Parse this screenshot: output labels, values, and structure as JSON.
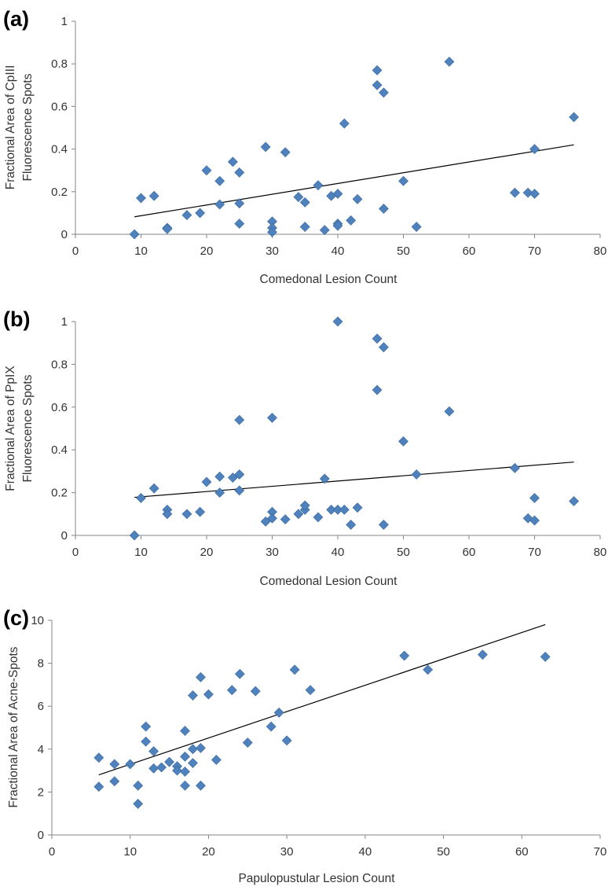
{
  "chart_data": [
    {
      "type": "scatter",
      "panel_label": "(a)",
      "ylabel_lines": [
        "Fractional Area of CpIII",
        "Fluorescence Spots"
      ],
      "xlabel": "Comedonal Lesion Count",
      "xlim": [
        0,
        80
      ],
      "ylim": [
        0,
        1
      ],
      "xticks": [
        0,
        10,
        20,
        30,
        40,
        50,
        60,
        70,
        80
      ],
      "yticks": [
        0,
        0.2,
        0.4,
        0.6,
        0.8,
        1
      ],
      "ytick_labels": [
        "0",
        "0.2",
        "0.4",
        "0.6",
        "0.8",
        "1"
      ],
      "marker_color": "#4F81BD",
      "points": [
        [
          9,
          0.0
        ],
        [
          10,
          0.17
        ],
        [
          12,
          0.18
        ],
        [
          14,
          0.03
        ],
        [
          14,
          0.025
        ],
        [
          17,
          0.09
        ],
        [
          19,
          0.1
        ],
        [
          20,
          0.3
        ],
        [
          22,
          0.25
        ],
        [
          22,
          0.14
        ],
        [
          24,
          0.34
        ],
        [
          25,
          0.29
        ],
        [
          25,
          0.145
        ],
        [
          25,
          0.05
        ],
        [
          29,
          0.41
        ],
        [
          30,
          0.06
        ],
        [
          30,
          0.03
        ],
        [
          30,
          0.01
        ],
        [
          32,
          0.385
        ],
        [
          34,
          0.175
        ],
        [
          35,
          0.15
        ],
        [
          35,
          0.035
        ],
        [
          37,
          0.23
        ],
        [
          38,
          0.02
        ],
        [
          39,
          0.18
        ],
        [
          40,
          0.19
        ],
        [
          40,
          0.05
        ],
        [
          40,
          0.04
        ],
        [
          41,
          0.52
        ],
        [
          42,
          0.065
        ],
        [
          43,
          0.165
        ],
        [
          46,
          0.77
        ],
        [
          46,
          0.7
        ],
        [
          47,
          0.665
        ],
        [
          47,
          0.12
        ],
        [
          50,
          0.25
        ],
        [
          52,
          0.035
        ],
        [
          57,
          0.81
        ],
        [
          67,
          0.195
        ],
        [
          69,
          0.195
        ],
        [
          70,
          0.4
        ],
        [
          70,
          0.19
        ],
        [
          76,
          0.55
        ]
      ],
      "trendline": {
        "x": [
          9,
          76
        ],
        "y": [
          0.082,
          0.42
        ]
      }
    },
    {
      "type": "scatter",
      "panel_label": "(b)",
      "ylabel_lines": [
        "Fractional Area of PpIX",
        "Fluorescence Spots"
      ],
      "xlabel": "Comedonal Lesion Count",
      "xlim": [
        0,
        80
      ],
      "ylim": [
        0,
        1
      ],
      "xticks": [
        0,
        10,
        20,
        30,
        40,
        50,
        60,
        70,
        80
      ],
      "yticks": [
        0,
        0.2,
        0.4,
        0.6,
        0.8,
        1
      ],
      "ytick_labels": [
        "0",
        "0.2",
        "0.4",
        "0.6",
        "0.8",
        "1"
      ],
      "marker_color": "#4F81BD",
      "points": [
        [
          9,
          0.0
        ],
        [
          10,
          0.175
        ],
        [
          12,
          0.22
        ],
        [
          14,
          0.12
        ],
        [
          14,
          0.1
        ],
        [
          17,
          0.1
        ],
        [
          19,
          0.11
        ],
        [
          20,
          0.25
        ],
        [
          22,
          0.275
        ],
        [
          22,
          0.2
        ],
        [
          24,
          0.27
        ],
        [
          25,
          0.285
        ],
        [
          25,
          0.54
        ],
        [
          25,
          0.21
        ],
        [
          29,
          0.065
        ],
        [
          30,
          0.55
        ],
        [
          30,
          0.11
        ],
        [
          30,
          0.08
        ],
        [
          32,
          0.075
        ],
        [
          34,
          0.1
        ],
        [
          35,
          0.12
        ],
        [
          35,
          0.14
        ],
        [
          37,
          0.085
        ],
        [
          38,
          0.265
        ],
        [
          39,
          0.12
        ],
        [
          40,
          1.0
        ],
        [
          40,
          0.12
        ],
        [
          41,
          0.12
        ],
        [
          42,
          0.05
        ],
        [
          43,
          0.13
        ],
        [
          46,
          0.92
        ],
        [
          46,
          0.68
        ],
        [
          47,
          0.88
        ],
        [
          47,
          0.05
        ],
        [
          50,
          0.44
        ],
        [
          52,
          0.285
        ],
        [
          57,
          0.58
        ],
        [
          67,
          0.315
        ],
        [
          69,
          0.08
        ],
        [
          70,
          0.175
        ],
        [
          70,
          0.07
        ],
        [
          76,
          0.16
        ]
      ],
      "trendline": {
        "x": [
          9,
          76
        ],
        "y": [
          0.178,
          0.343
        ]
      }
    },
    {
      "type": "scatter",
      "panel_label": "(c)",
      "ylabel_lines": [
        "Fractional Area of Acne-Spots"
      ],
      "xlabel": "Papulopustular Lesion Count",
      "xlim": [
        0,
        70
      ],
      "ylim": [
        0,
        10
      ],
      "xticks": [
        0,
        10,
        20,
        30,
        40,
        50,
        60,
        70
      ],
      "yticks": [
        0,
        2,
        4,
        6,
        8,
        10
      ],
      "ytick_labels": [
        "0",
        "2",
        "4",
        "6",
        "8",
        "10"
      ],
      "marker_color": "#4F81BD",
      "points": [
        [
          6,
          3.6
        ],
        [
          6,
          2.25
        ],
        [
          8,
          3.3
        ],
        [
          8,
          2.5
        ],
        [
          10,
          3.3
        ],
        [
          11,
          2.3
        ],
        [
          11,
          1.45
        ],
        [
          12,
          5.05
        ],
        [
          12,
          4.35
        ],
        [
          13,
          3.9
        ],
        [
          13,
          3.1
        ],
        [
          14,
          3.15
        ],
        [
          15,
          3.4
        ],
        [
          16,
          3.2
        ],
        [
          16,
          3.0
        ],
        [
          17,
          4.85
        ],
        [
          17,
          3.65
        ],
        [
          17,
          2.95
        ],
        [
          17,
          2.3
        ],
        [
          18,
          6.5
        ],
        [
          18,
          3.35
        ],
        [
          18,
          4.0
        ],
        [
          19,
          7.35
        ],
        [
          19,
          4.05
        ],
        [
          19,
          2.3
        ],
        [
          20,
          6.55
        ],
        [
          21,
          3.5
        ],
        [
          23,
          6.75
        ],
        [
          24,
          7.5
        ],
        [
          25,
          4.3
        ],
        [
          26,
          6.7
        ],
        [
          28,
          5.05
        ],
        [
          29,
          5.7
        ],
        [
          30,
          4.4
        ],
        [
          31,
          7.7
        ],
        [
          33,
          6.75
        ],
        [
          45,
          8.35
        ],
        [
          48,
          7.7
        ],
        [
          55,
          8.4
        ],
        [
          63,
          8.3
        ]
      ],
      "trendline": {
        "x": [
          6,
          63
        ],
        "y": [
          2.8,
          9.8
        ]
      }
    }
  ]
}
